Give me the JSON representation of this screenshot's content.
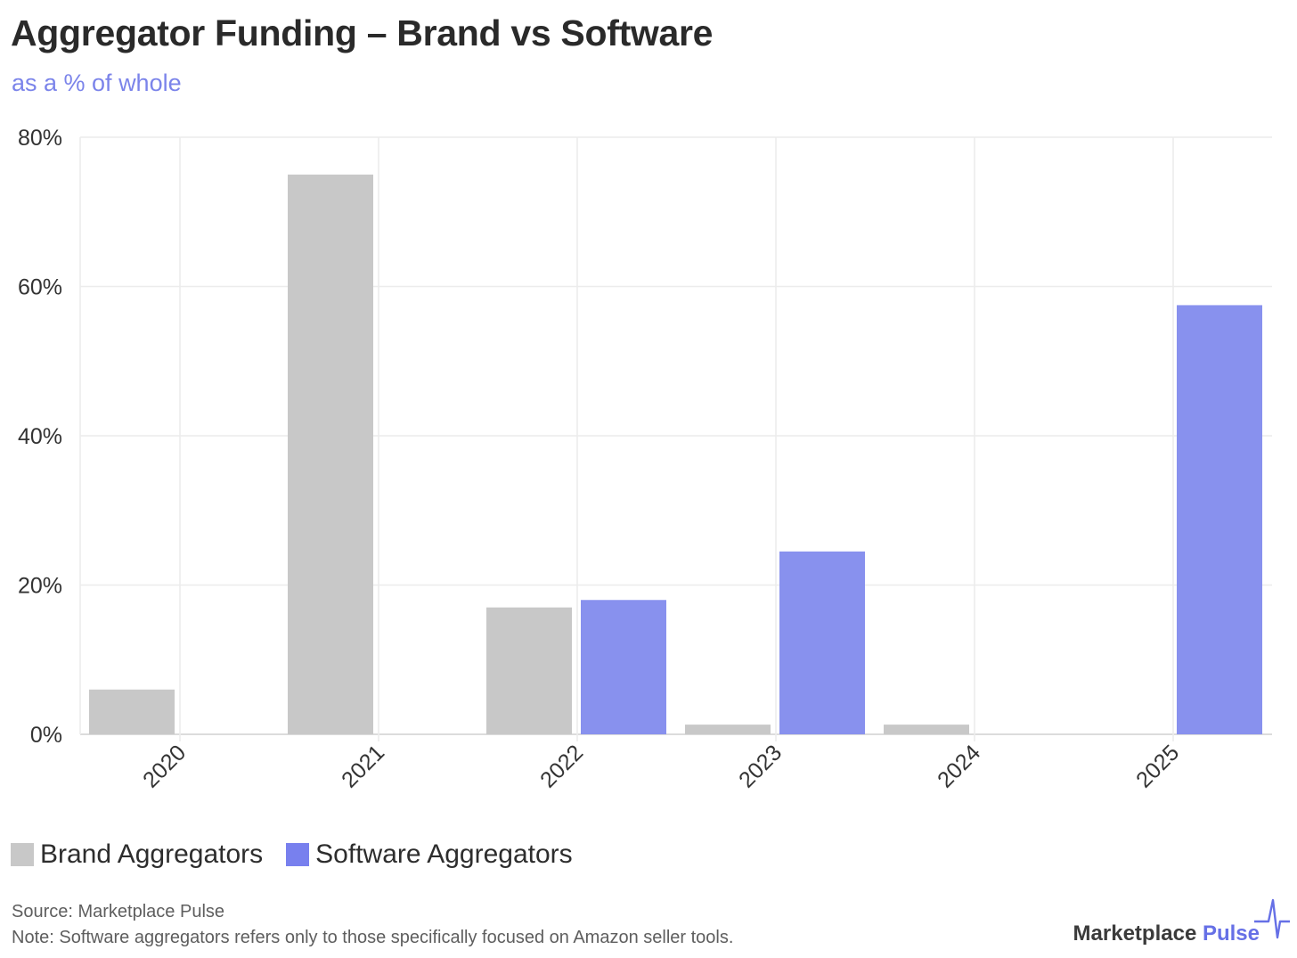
{
  "header": {
    "title": "Aggregator Funding – Brand vs Software",
    "subtitle": "as a % of whole"
  },
  "chart_data": {
    "type": "bar",
    "title": "Aggregator Funding – Brand vs Software",
    "subtitle": "as a % of whole",
    "categories": [
      "2020",
      "2021",
      "2022",
      "2023",
      "2024",
      "2025"
    ],
    "series": [
      {
        "name": "Brand Aggregators",
        "color": "#c8c8c8",
        "values": [
          6,
          75,
          17,
          1.3,
          1.3,
          0
        ]
      },
      {
        "name": "Software Aggregators",
        "color": "#8891ee",
        "values": [
          0,
          0,
          18,
          24.5,
          0,
          57.5
        ]
      }
    ],
    "ylim": [
      0,
      80
    ],
    "yticks": [
      0,
      20,
      40,
      60,
      80
    ],
    "ytick_labels": [
      "0%",
      "20%",
      "40%",
      "60%",
      "80%"
    ],
    "xlabel": "",
    "ylabel": "",
    "grid": true,
    "legend_position": "bottom-left"
  },
  "legend": {
    "items": [
      {
        "label": "Brand Aggregators",
        "color": "#c8c8c8"
      },
      {
        "label": "Software Aggregators",
        "color": "#7880ee"
      }
    ]
  },
  "footer": {
    "source": "Source: Marketplace Pulse",
    "note": "Note: Software aggregators refers only to those specifically focused on Amazon seller tools."
  },
  "branding": {
    "name_main": "Marketplace",
    "name_accent": "Pulse",
    "logo_icon": "pulse-wave-icon",
    "accent_color": "#6670e6"
  }
}
